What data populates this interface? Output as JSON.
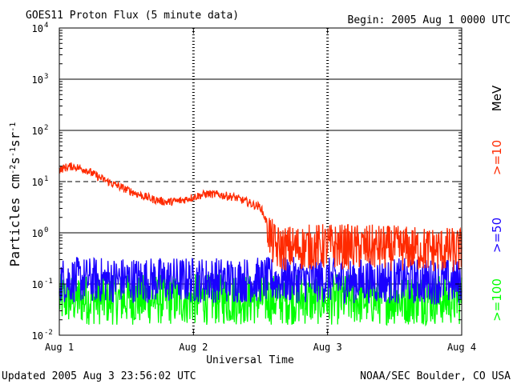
{
  "header": {
    "title": "GOES11 Proton Flux (5 minute data)",
    "begin": "Begin: 2005 Aug 1 0000 UTC"
  },
  "footer": {
    "updated": "Updated 2005 Aug  3 23:56:02 UTC",
    "credit": "NOAA/SEC Boulder, CO USA"
  },
  "chart_data": {
    "type": "line",
    "title": "GOES11 Proton Flux (5 minute data)",
    "xlabel": "Universal Time",
    "ylabel": "Particles cm-2s-1sr-1",
    "yscale": "log",
    "ylim": [
      0.01,
      10000
    ],
    "xlim": [
      "Aug 1",
      "Aug 4"
    ],
    "x_ticks": [
      "Aug 1",
      "Aug 2",
      "Aug 3",
      "Aug 4"
    ],
    "y_ticks": [
      {
        "base": "10",
        "exp": "4"
      },
      {
        "base": "10",
        "exp": "3"
      },
      {
        "base": "10",
        "exp": "2"
      },
      {
        "base": "10",
        "exp": "1"
      },
      {
        "base": "10",
        "exp": "0"
      },
      {
        "base": "10",
        "exp": "-1"
      },
      {
        "base": "10",
        "exp": "-2"
      }
    ],
    "grid": "horizontal solid lines at 10^3, 10^2, 10^0, 10^-1; dashed at 10^1; dotted day markers",
    "units_label": "MeV",
    "series": [
      {
        "name": ">=10",
        "color": "#ff2a00",
        "x_day": [
          0.0,
          0.05,
          0.1,
          0.2,
          0.3,
          0.4,
          0.5,
          0.6,
          0.7,
          0.8,
          0.9,
          1.0,
          1.1,
          1.2,
          1.3,
          1.4,
          1.45,
          1.5,
          1.55,
          1.58,
          1.62,
          1.7,
          2.0,
          2.5,
          3.0
        ],
        "values": [
          17,
          19,
          20,
          17,
          12,
          9,
          7,
          5.5,
          4.5,
          4,
          4.2,
          5,
          5.8,
          5.5,
          5,
          4,
          3.5,
          3.2,
          1.5,
          0.7,
          0.5,
          0.5,
          0.55,
          0.5,
          0.45
        ],
        "noise_after_day": 1.55
      },
      {
        "name": ">=50",
        "color": "#1a00ff",
        "x_day": [
          0.0,
          1.0,
          2.0,
          3.0
        ],
        "values": [
          0.12,
          0.12,
          0.12,
          0.11
        ]
      },
      {
        "name": ">=100",
        "color": "#00ff00",
        "x_day": [
          0.0,
          1.0,
          2.0,
          3.0
        ],
        "values": [
          0.05,
          0.05,
          0.05,
          0.05
        ]
      }
    ]
  }
}
